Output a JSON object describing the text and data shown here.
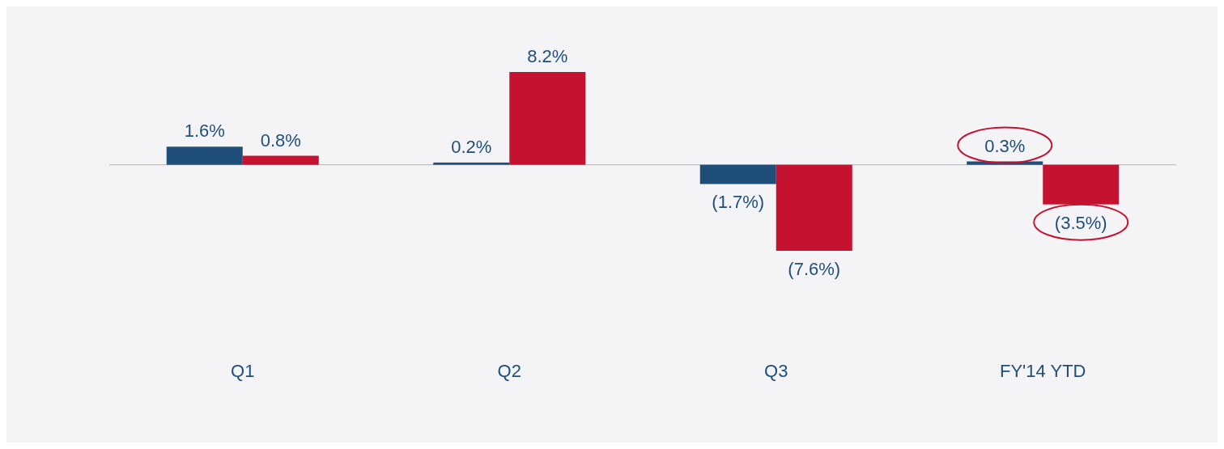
{
  "chart_data": {
    "type": "bar",
    "categories": [
      "Q1",
      "Q2",
      "Q3",
      "FY'14 YTD"
    ],
    "series": [
      {
        "color": "#1f4e79",
        "values": [
          1.6,
          0.2,
          -1.7,
          0.3
        ],
        "value_labels": [
          "1.6%",
          "0.2%",
          "(1.7%)",
          "0.3%"
        ]
      },
      {
        "color": "#c41230",
        "values": [
          0.8,
          8.2,
          -7.6,
          -3.5
        ],
        "value_labels": [
          "0.8%",
          "8.2%",
          "(7.6%)",
          "(3.5%)"
        ]
      }
    ]
  }
}
